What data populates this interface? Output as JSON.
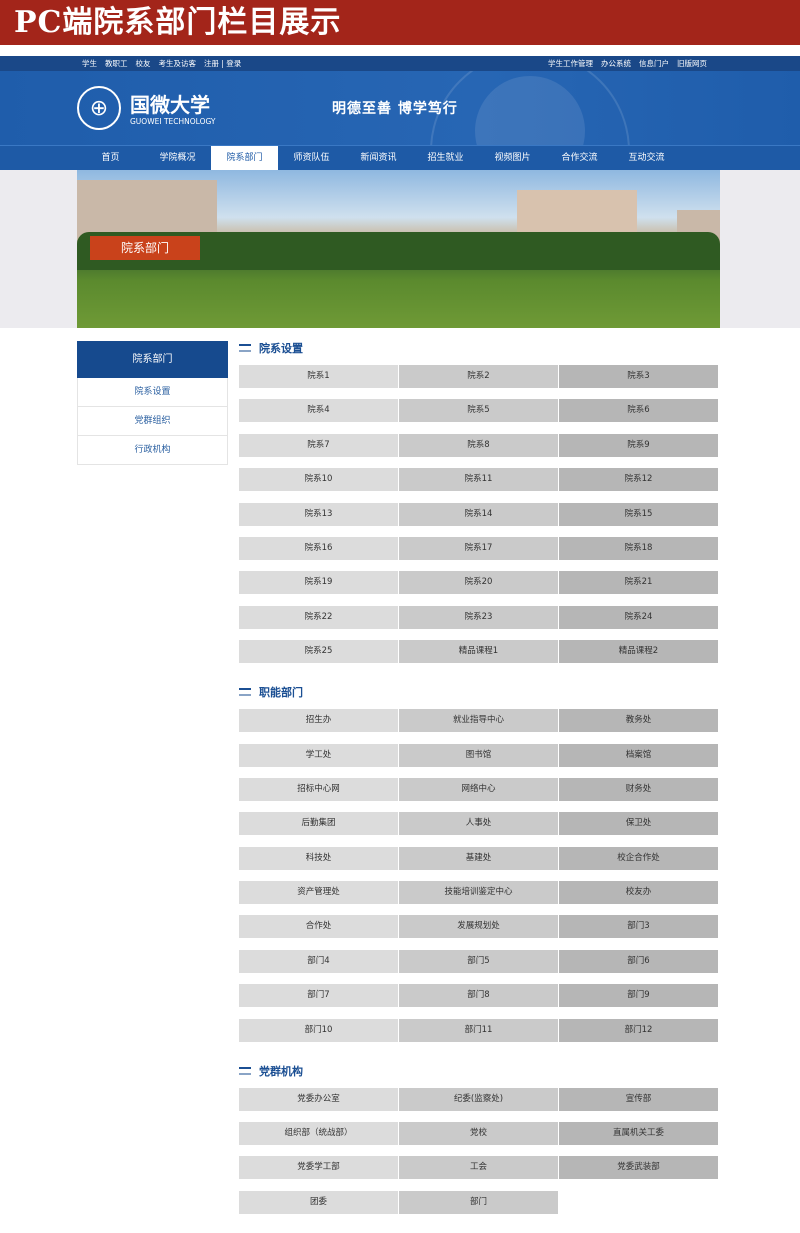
{
  "page_title": "PC端院系部门栏目展示",
  "topbar": {
    "left": [
      "学生",
      "教职工",
      "校友",
      "考生及访客",
      "注册 | 登录"
    ],
    "right": [
      "学生工作管理",
      "办公系统",
      "信息门户",
      "旧版网页"
    ]
  },
  "header": {
    "logo_cn": "国微大学",
    "logo_en": "GUOWEI  TECHNOLOGY",
    "motto": "明德至善  博学笃行"
  },
  "nav": [
    "首页",
    "学院概况",
    "院系部门",
    "师资队伍",
    "新闻资讯",
    "招生就业",
    "视频图片",
    "合作交流",
    "互动交流"
  ],
  "nav_active": 2,
  "banner_label": "院系部门",
  "sidebar": {
    "title": "院系部门",
    "items": [
      "院系设置",
      "党群组织",
      "行政机构"
    ]
  },
  "sections": [
    {
      "title": "院系设置",
      "items": [
        "院系1",
        "院系2",
        "院系3",
        "院系4",
        "院系5",
        "院系6",
        "院系7",
        "院系8",
        "院系9",
        "院系10",
        "院系11",
        "院系12",
        "院系13",
        "院系14",
        "院系15",
        "院系16",
        "院系17",
        "院系18",
        "院系19",
        "院系20",
        "院系21",
        "院系22",
        "院系23",
        "院系24",
        "院系25",
        "精品课程1",
        "精品课程2"
      ]
    },
    {
      "title": "职能部门",
      "items": [
        "招生办",
        "就业指导中心",
        "教务处",
        "学工处",
        "图书馆",
        "档案馆",
        "招标中心网",
        "网络中心",
        "财务处",
        "后勤集团",
        "人事处",
        "保卫处",
        "科技处",
        "基建处",
        "校企合作处",
        "资产管理处",
        "技能培训鉴定中心",
        "校友办",
        "合作处",
        "发展规划处",
        "部门3",
        "部门4",
        "部门5",
        "部门6",
        "部门7",
        "部门8",
        "部门9",
        "部门10",
        "部门11",
        "部门12"
      ]
    },
    {
      "title": "党群机构",
      "items": [
        "党委办公室",
        "纪委(监察处)",
        "宣传部",
        "组织部（统战部）",
        "党校",
        "直属机关工委",
        "党委学工部",
        "工会",
        "党委武装部",
        "团委",
        "部门"
      ]
    }
  ]
}
